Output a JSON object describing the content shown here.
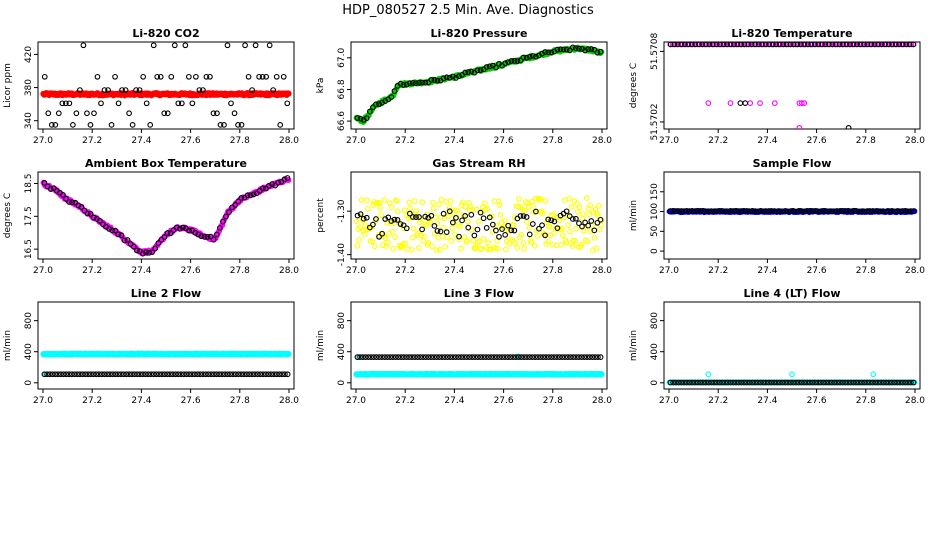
{
  "figure": {
    "title": "HDP_080527  2.5 Min. Ave. Diagnostics"
  },
  "colors": {
    "black": "#000000",
    "red": "#ff0000",
    "green": "#00cc00",
    "magenta": "#ff00ff",
    "yellow": "#ffff00",
    "blue": "#0000ff",
    "cyan": "#00ffff"
  },
  "chart_data": [
    {
      "id": "co2",
      "type": "scatter",
      "title": "Li-820 CO2",
      "ylabel": "Licor ppm",
      "xlim": [
        27.0,
        28.0
      ],
      "xticks": [
        "27.0",
        "27.2",
        "27.4",
        "27.6",
        "27.8",
        "28.0"
      ],
      "ylim": [
        330,
        435
      ],
      "yticks": [
        "340",
        "380",
        "420"
      ],
      "series": [
        {
          "name": "co2_avg",
          "color": "#ff0000",
          "filled": true,
          "size": 2.6,
          "gen": {
            "kind": "constant",
            "value": 372,
            "jitter": 1.2,
            "n": 260
          }
        },
        {
          "name": "co2_raw",
          "color": "#000000",
          "filled": false,
          "size": 2.3,
          "gen": {
            "kind": "levels",
            "levels": [
              335,
              349,
              361,
              377,
              393,
              431
            ],
            "n": 70
          }
        }
      ]
    },
    {
      "id": "pressure",
      "type": "scatter",
      "title": "Li-820 Pressure",
      "ylabel": "kPa",
      "xlim": [
        27.0,
        28.0
      ],
      "xticks": [
        "27.0",
        "27.2",
        "27.4",
        "27.6",
        "27.8",
        "28.0"
      ],
      "ylim": [
        66.55,
        67.1
      ],
      "yticks": [
        "66.6",
        "66.8",
        "67.0"
      ],
      "series": [
        {
          "name": "pressure_avg",
          "color": "#00cc00",
          "filled": true,
          "size": 2.4,
          "gen": {
            "kind": "curve",
            "x": [
              27.0,
              27.03,
              27.08,
              27.15,
              27.17,
              27.3,
              27.4,
              27.5,
              27.6,
              27.7,
              27.8,
              27.9,
              27.95,
              28.0
            ],
            "y": [
              66.62,
              66.6,
              66.7,
              66.76,
              66.83,
              66.85,
              66.88,
              66.92,
              66.96,
              67.0,
              67.04,
              67.06,
              67.05,
              67.03
            ],
            "jitter": 0.008,
            "n": 220
          }
        },
        {
          "name": "pressure_raw",
          "color": "#000000",
          "filled": false,
          "size": 2.3,
          "gen": {
            "kind": "curve",
            "x": [
              27.0,
              27.03,
              27.08,
              27.15,
              27.17,
              27.3,
              27.4,
              27.5,
              27.6,
              27.7,
              27.8,
              27.9,
              27.95,
              28.0
            ],
            "y": [
              66.62,
              66.6,
              66.7,
              66.76,
              66.83,
              66.85,
              66.88,
              66.92,
              66.96,
              67.0,
              67.04,
              67.06,
              67.05,
              67.03
            ],
            "jitter": 0.01,
            "n": 80
          }
        }
      ]
    },
    {
      "id": "licor_temp",
      "type": "scatter",
      "title": "Li-820 Temperature",
      "ylabel": "degrees C",
      "xlim": [
        27.0,
        28.0
      ],
      "xticks": [
        "27.0",
        "27.2",
        "27.4",
        "27.6",
        "27.8",
        "28.0"
      ],
      "ylim": [
        51.57014,
        51.57088
      ],
      "yticks": [
        "51.5702",
        "51.5708"
      ],
      "series": [
        {
          "name": "temp_avg_top",
          "color": "#ff00ff",
          "filled": false,
          "size": 2.3,
          "gen": {
            "kind": "constant",
            "value": 51.57086,
            "jitter": 0,
            "n": 100
          }
        },
        {
          "name": "temp_raw_top",
          "color": "#000000",
          "filled": false,
          "size": 2.3,
          "gen": {
            "kind": "constant",
            "value": 51.57086,
            "jitter": 0,
            "n": 70
          }
        },
        {
          "name": "temp_avg_mid",
          "color": "#ff00ff",
          "filled": false,
          "size": 2.3,
          "points": [
            [
              27.16,
              51.57036
            ],
            [
              27.25,
              51.57036
            ],
            [
              27.33,
              51.57036
            ],
            [
              27.37,
              51.57036
            ],
            [
              27.43,
              51.57036
            ],
            [
              27.53,
              51.57036
            ],
            [
              27.54,
              51.57036
            ],
            [
              27.55,
              51.57036
            ],
            [
              27.53,
              51.57015
            ]
          ]
        },
        {
          "name": "temp_raw_mid",
          "color": "#000000",
          "filled": false,
          "size": 2.3,
          "points": [
            [
              27.29,
              51.57036
            ],
            [
              27.31,
              51.57036
            ],
            [
              27.73,
              51.57015
            ]
          ]
        }
      ]
    },
    {
      "id": "box_temp",
      "type": "scatter",
      "title": "Ambient Box Temperature",
      "ylabel": "degrees C",
      "xlim": [
        27.0,
        28.0
      ],
      "xticks": [
        "27.0",
        "27.2",
        "27.4",
        "27.6",
        "27.8",
        "28.0"
      ],
      "ylim": [
        16.2,
        18.85
      ],
      "yticks": [
        "16.5",
        "17.5",
        "18.5"
      ],
      "series": [
        {
          "name": "boxtemp_avg",
          "color": "#ff00ff",
          "filled": true,
          "size": 2.4,
          "gen": {
            "kind": "curve",
            "x": [
              27.0,
              27.05,
              27.1,
              27.15,
              27.2,
              27.3,
              27.4,
              27.45,
              27.5,
              27.55,
              27.6,
              27.65,
              27.7,
              27.75,
              27.8,
              27.9,
              28.0
            ],
            "y": [
              18.5,
              18.3,
              18.0,
              17.8,
              17.5,
              17.0,
              16.4,
              16.45,
              16.95,
              17.15,
              17.1,
              16.9,
              16.8,
              17.6,
              18.0,
              18.35,
              18.65
            ],
            "jitter": 0.04,
            "n": 220
          }
        },
        {
          "name": "boxtemp_raw",
          "color": "#000000",
          "filled": false,
          "size": 2.3,
          "gen": {
            "kind": "curve",
            "x": [
              27.0,
              27.05,
              27.1,
              27.15,
              27.2,
              27.3,
              27.4,
              27.45,
              27.5,
              27.55,
              27.6,
              27.65,
              27.7,
              27.75,
              27.8,
              27.9,
              28.0
            ],
            "y": [
              18.5,
              18.3,
              18.0,
              17.8,
              17.5,
              17.0,
              16.4,
              16.45,
              16.95,
              17.15,
              17.1,
              16.9,
              16.8,
              17.6,
              18.0,
              18.35,
              18.65
            ],
            "jitter": 0.05,
            "n": 80
          }
        }
      ]
    },
    {
      "id": "rh",
      "type": "scatter",
      "title": "Gas Stream RH",
      "ylabel": "percent",
      "xlim": [
        27.0,
        28.0
      ],
      "xticks": [
        "27.0",
        "27.2",
        "27.4",
        "27.6",
        "27.8",
        "28.0"
      ],
      "ylim": [
        -1.41,
        -1.21
      ],
      "yticks": [
        "-1.40",
        "-1.30"
      ],
      "series": [
        {
          "name": "rh_avg",
          "color": "#ffff00",
          "filled": false,
          "size": 2.3,
          "gen": {
            "kind": "noise",
            "center": -1.33,
            "spread": 0.06,
            "n": 280
          }
        },
        {
          "name": "rh_raw",
          "color": "#000000",
          "filled": false,
          "size": 2.3,
          "gen": {
            "kind": "noise",
            "center": -1.33,
            "spread": 0.03,
            "n": 80
          }
        }
      ]
    },
    {
      "id": "sample_flow",
      "type": "scatter",
      "title": "Sample Flow",
      "ylabel": "ml/min",
      "xlim": [
        27.0,
        28.0
      ],
      "xticks": [
        "27.0",
        "27.2",
        "27.4",
        "27.6",
        "27.8",
        "28.0"
      ],
      "ylim": [
        -20,
        200
      ],
      "yticks": [
        "0",
        "50",
        "100",
        "150"
      ],
      "series": [
        {
          "name": "sample_avg",
          "color": "#0000ff",
          "filled": true,
          "size": 2.4,
          "gen": {
            "kind": "constant",
            "value": 100,
            "jitter": 1.5,
            "n": 220
          }
        },
        {
          "name": "sample_raw",
          "color": "#000000",
          "filled": false,
          "size": 2.3,
          "gen": {
            "kind": "constant",
            "value": 101,
            "jitter": 1.0,
            "n": 90
          }
        }
      ]
    },
    {
      "id": "line2_flow",
      "type": "scatter",
      "title": "Line 2 Flow",
      "ylabel": "ml/min",
      "xlim": [
        27.0,
        28.0
      ],
      "xticks": [
        "27.0",
        "27.2",
        "27.4",
        "27.6",
        "27.8",
        "28.0"
      ],
      "ylim": [
        -80,
        1040
      ],
      "yticks": [
        "0",
        "400",
        "800"
      ],
      "series": [
        {
          "name": "line2_avg_hi",
          "color": "#00ffff",
          "filled": true,
          "size": 2.6,
          "gen": {
            "kind": "constant",
            "value": 370,
            "jitter": 4,
            "n": 220
          }
        },
        {
          "name": "line2_avg_lo",
          "color": "#00ffff",
          "filled": false,
          "size": 2.3,
          "points": [
            [
              27.01,
              110
            ]
          ]
        },
        {
          "name": "line2_raw",
          "color": "#000000",
          "filled": false,
          "size": 2.3,
          "gen": {
            "kind": "constant",
            "value": 110,
            "jitter": 0,
            "n": 90
          }
        }
      ]
    },
    {
      "id": "line3_flow",
      "type": "scatter",
      "title": "Line 3 Flow",
      "ylabel": "ml/min",
      "xlim": [
        27.0,
        28.0
      ],
      "xticks": [
        "27.0",
        "27.2",
        "27.4",
        "27.6",
        "27.8",
        "28.0"
      ],
      "ylim": [
        -80,
        1040
      ],
      "yticks": [
        "0",
        "400",
        "800"
      ],
      "series": [
        {
          "name": "line3_avg_lo",
          "color": "#00ffff",
          "filled": true,
          "size": 2.6,
          "gen": {
            "kind": "constant",
            "value": 110,
            "jitter": 3,
            "n": 220
          }
        },
        {
          "name": "line3_avg_hi",
          "color": "#00ffff",
          "filled": false,
          "size": 2.3,
          "points": [
            [
              27.01,
              330
            ],
            [
              27.66,
              340
            ]
          ]
        },
        {
          "name": "line3_raw",
          "color": "#000000",
          "filled": false,
          "size": 2.3,
          "gen": {
            "kind": "constant",
            "value": 330,
            "jitter": 0,
            "n": 90
          }
        }
      ]
    },
    {
      "id": "line4_flow",
      "type": "scatter",
      "title": "Line 4 (LT) Flow",
      "ylabel": "ml/min",
      "xlim": [
        27.0,
        28.0
      ],
      "xticks": [
        "27.0",
        "27.2",
        "27.4",
        "27.6",
        "27.8",
        "28.0"
      ],
      "ylim": [
        -80,
        1040
      ],
      "yticks": [
        "0",
        "400",
        "800"
      ],
      "series": [
        {
          "name": "line4_avg",
          "color": "#00ffff",
          "filled": true,
          "size": 2.4,
          "gen": {
            "kind": "constant",
            "value": 4,
            "jitter": 1,
            "n": 200
          }
        },
        {
          "name": "line4_avg_spikes",
          "color": "#00ffff",
          "filled": false,
          "size": 2.3,
          "points": [
            [
              27.01,
              4
            ],
            [
              27.16,
              110
            ],
            [
              27.5,
              110
            ],
            [
              27.83,
              110
            ]
          ]
        },
        {
          "name": "line4_raw",
          "color": "#000000",
          "filled": false,
          "size": 2.3,
          "gen": {
            "kind": "constant",
            "value": 4,
            "jitter": 0,
            "n": 90
          }
        }
      ]
    }
  ]
}
